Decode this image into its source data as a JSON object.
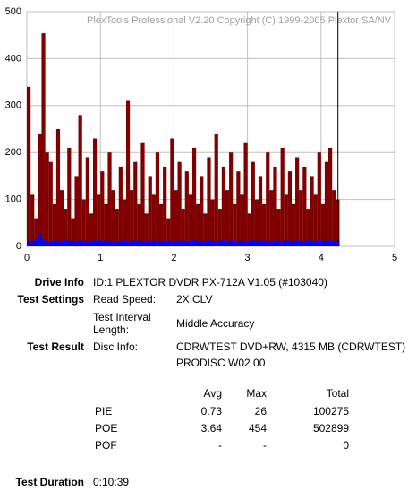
{
  "chart_data": {
    "type": "bar",
    "watermark": "PlexTools Professional V2.20 Copyright (C) 1999-2005 Plextor SA/NV",
    "x": [
      0,
      0.05,
      0.1,
      0.15,
      0.2,
      0.25,
      0.3,
      0.35,
      0.4,
      0.45,
      0.5,
      0.55,
      0.6,
      0.65,
      0.7,
      0.75,
      0.8,
      0.85,
      0.9,
      0.95,
      1,
      1.05,
      1.1,
      1.15,
      1.2,
      1.25,
      1.3,
      1.35,
      1.4,
      1.45,
      1.5,
      1.55,
      1.6,
      1.65,
      1.7,
      1.75,
      1.8,
      1.85,
      1.9,
      1.95,
      2,
      2.05,
      2.1,
      2.15,
      2.2,
      2.25,
      2.3,
      2.35,
      2.4,
      2.45,
      2.5,
      2.55,
      2.6,
      2.65,
      2.7,
      2.75,
      2.8,
      2.85,
      2.9,
      2.95,
      3,
      3.05,
      3.1,
      3.15,
      3.2,
      3.25,
      3.3,
      3.35,
      3.4,
      3.45,
      3.5,
      3.55,
      3.6,
      3.65,
      3.7,
      3.75,
      3.8,
      3.85,
      3.9,
      3.95,
      4,
      4.05,
      4.1,
      4.15,
      4.2
    ],
    "series": [
      {
        "color": "#800000",
        "values": [
          340,
          110,
          60,
          240,
          454,
          200,
          180,
          90,
          250,
          120,
          80,
          210,
          60,
          150,
          280,
          100,
          190,
          70,
          230,
          110,
          160,
          90,
          200,
          120,
          80,
          170,
          100,
          310,
          120,
          180,
          90,
          220,
          70,
          150,
          110,
          200,
          90,
          170,
          60,
          230,
          120,
          180,
          80,
          160,
          110,
          210,
          90,
          150,
          70,
          190,
          100,
          240,
          80,
          170,
          120,
          200,
          90,
          160,
          110,
          220,
          70,
          180,
          100,
          150,
          90,
          200,
          120,
          170,
          80,
          210,
          110,
          160,
          90,
          190,
          120,
          170,
          80,
          150,
          110,
          200,
          90,
          180,
          210,
          120,
          100
        ]
      },
      {
        "color": "#0000ff",
        "values": [
          12,
          10,
          14,
          26,
          15,
          11,
          9,
          13,
          12,
          10,
          14,
          11,
          12,
          10,
          13,
          9,
          12,
          11,
          14,
          10,
          13,
          10,
          12,
          11,
          9,
          12,
          14,
          10,
          11,
          13,
          10,
          12,
          9,
          13,
          11,
          12,
          11,
          14,
          10,
          12,
          9,
          13,
          11,
          12,
          10,
          14,
          10,
          12,
          11,
          13,
          11,
          12,
          10,
          14,
          9,
          13,
          11,
          12,
          10,
          12,
          10,
          14,
          11,
          13,
          12,
          12,
          9,
          13,
          11,
          10,
          14,
          12,
          10,
          13,
          11,
          11,
          13,
          12,
          10,
          14,
          12,
          11,
          13,
          10,
          12
        ]
      }
    ],
    "end_line_x": 4.23,
    "xlim": [
      0,
      5
    ],
    "xticks": [
      0,
      1,
      2,
      3,
      4,
      5
    ],
    "ylim": [
      0,
      500
    ],
    "yticks": [
      0,
      100,
      200,
      300,
      400,
      500
    ],
    "grid": true
  },
  "info": {
    "drive_label": "Drive Info",
    "drive": "ID:1 PLEXTOR DVDR PX-712A V1.05 (#103040)",
    "settings_label": "Test Settings",
    "speed_label": "Read Speed:",
    "speed": "2X CLV",
    "interval_label_1": "Test Interval",
    "interval_label_2": "Length:",
    "interval": "Middle Accuracy",
    "result_label": "Test Result",
    "disc_label": "Disc Info:",
    "disc_1": "CDRWTEST DVD+RW, 4315 MB (CDRWTEST)",
    "disc_2": "PRODISC W02 00",
    "stats": {
      "header": [
        "Avg",
        "Max",
        "Total"
      ],
      "rows": [
        [
          "PIE",
          "0.73",
          "26",
          "100275"
        ],
        [
          "POE",
          "3.64",
          "454",
          "502899"
        ],
        [
          "POF",
          "-",
          "-",
          "0"
        ]
      ]
    },
    "duration_label": "Test Duration",
    "duration": "0:10:39"
  }
}
